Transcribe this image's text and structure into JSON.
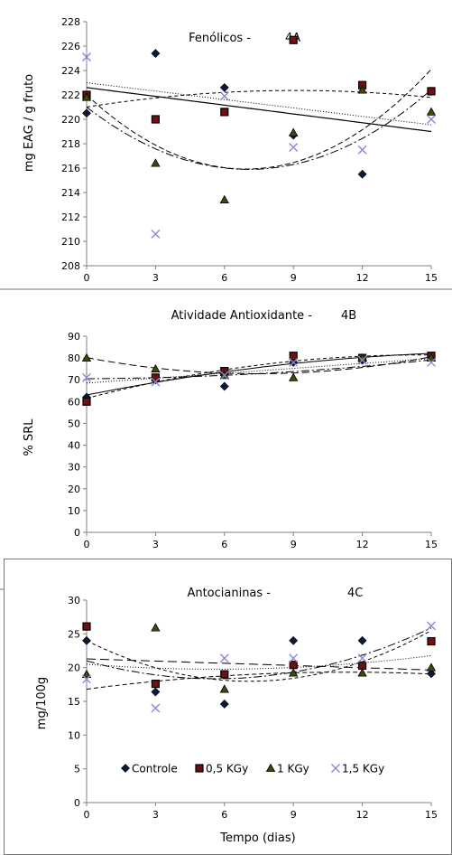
{
  "colors": {
    "controle": "#0a1a3a",
    "kgy05_fill": "#6e1010",
    "kgy1_fill": "#3e4a0a",
    "kgy15": "#8c88d8",
    "axis": "#808080"
  },
  "legend": {
    "items": [
      {
        "label": "Controle",
        "marker": "diamond"
      },
      {
        "label": "0,5 KGy",
        "marker": "square"
      },
      {
        "label": "1 KGy",
        "marker": "triangle"
      },
      {
        "label": "1,5 KGy",
        "marker": "cross"
      }
    ]
  },
  "xlabel": "Tempo (dias)",
  "chart_data": [
    {
      "type": "scatter",
      "title": "Fenólicos -",
      "panel": "4A",
      "ylabel": "mg EAG / g fruto",
      "x": [
        0,
        3,
        6,
        9,
        12,
        15
      ],
      "xticks": [
        0,
        3,
        6,
        9,
        12,
        15
      ],
      "ylim": [
        208,
        228
      ],
      "yticks": [
        208,
        210,
        212,
        214,
        216,
        218,
        220,
        222,
        224,
        226,
        228
      ],
      "series": [
        {
          "name": "Controle",
          "values": [
            220.5,
            225.4,
            222.6,
            218.7,
            215.5,
            222.3
          ]
        },
        {
          "name": "0,5 KGy",
          "values": [
            222.0,
            220.0,
            220.6,
            226.5,
            222.8,
            222.3
          ]
        },
        {
          "name": "1 KGy",
          "values": [
            221.8,
            216.4,
            213.4,
            218.9,
            222.4,
            220.6
          ]
        },
        {
          "name": "1,5 KGy",
          "values": [
            225.1,
            210.6,
            221.9,
            217.7,
            217.5,
            220.0
          ]
        }
      ],
      "trendlines": [
        {
          "series": "Controle",
          "dash": "",
          "width": 1.2,
          "coef": [
            222.6,
            -0.24,
            0
          ]
        },
        {
          "series": "0,5 KGy",
          "dash": "4,3",
          "width": 1,
          "coef": [
            221.0,
            0.3,
            -0.0165
          ]
        },
        {
          "series": "1 KGy",
          "dash": "9,3,2,3",
          "width": 1,
          "coef": [
            221.0,
            -1.45,
            0.103
          ]
        },
        {
          "series": "1,5 KGy",
          "dash": "1,2",
          "width": 1,
          "coef": [
            223.0,
            -0.23,
            0
          ]
        },
        {
          "series": "extra",
          "dash": "6,3",
          "width": 1,
          "coef": [
            222.0,
            -1.75,
            0.126
          ]
        }
      ]
    },
    {
      "type": "scatter",
      "title": "Atividade Antioxidante -",
      "panel": "4B",
      "ylabel": "% SRL",
      "x": [
        0,
        3,
        6,
        9,
        12,
        15
      ],
      "xticks": [
        0,
        3,
        6,
        9,
        12,
        15
      ],
      "ylim": [
        0,
        90
      ],
      "yticks": [
        0,
        10,
        20,
        30,
        40,
        50,
        60,
        70,
        80,
        90
      ],
      "series": [
        {
          "name": "Controle",
          "values": [
            62,
            70,
            67,
            78,
            79,
            80
          ]
        },
        {
          "name": "0,5 KGy",
          "values": [
            60,
            71,
            74,
            81,
            80,
            81
          ]
        },
        {
          "name": "1 KGy",
          "values": [
            80,
            75,
            72,
            71,
            80,
            80
          ]
        },
        {
          "name": "1,5 KGy",
          "values": [
            71,
            69,
            72,
            78,
            79,
            78
          ]
        }
      ],
      "trendlines": [
        {
          "series": "Controle",
          "dash": "",
          "width": 1,
          "coef": [
            63,
            2.1,
            -0.055
          ]
        },
        {
          "series": "0,5 KGy",
          "dash": "4,3",
          "width": 1,
          "coef": [
            61.5,
            2.75,
            -0.095
          ]
        },
        {
          "series": "1 KGy",
          "dash": "8,4",
          "width": 1,
          "coef": [
            80.2,
            -2.0,
            0.135
          ]
        },
        {
          "series": "1,5 KGy",
          "dash": "1,2",
          "width": 1,
          "coef": [
            68.5,
            0.75,
            0
          ]
        },
        {
          "series": "extra",
          "dash": "9,3,2,3",
          "width": 1,
          "coef": [
            70.5,
            0.05,
            0.035
          ]
        }
      ]
    },
    {
      "type": "scatter",
      "title": "Antocianinas -",
      "panel": "4C",
      "ylabel": "mg/100g",
      "x": [
        0,
        3,
        6,
        9,
        12,
        15
      ],
      "xticks": [
        0,
        3,
        6,
        9,
        12,
        15
      ],
      "ylim": [
        0,
        30
      ],
      "yticks": [
        0,
        5,
        10,
        15,
        20,
        25,
        30
      ],
      "series": [
        {
          "name": "Controle",
          "values": [
            24.0,
            16.4,
            14.6,
            24.0,
            24.0,
            19.1
          ]
        },
        {
          "name": "0,5 KGy",
          "values": [
            26.1,
            17.6,
            19.0,
            20.4,
            20.3,
            23.9
          ]
        },
        {
          "name": "1 KGy",
          "values": [
            19.0,
            25.9,
            16.8,
            19.2,
            19.2,
            20.0
          ]
        },
        {
          "name": "1,5 KGy",
          "values": [
            18.3,
            14.0,
            21.4,
            21.4,
            21.4,
            26.2
          ]
        }
      ],
      "trendlines": [
        {
          "series": "Controle",
          "dash": "4,3",
          "width": 1,
          "coef": [
            24.0,
            -1.7,
            0.12
          ]
        },
        {
          "series": "0,5 KGy",
          "dash": "10,5",
          "width": 1,
          "coef": [
            21.3,
            -0.11,
            0
          ]
        },
        {
          "series": "1 KGy",
          "dash": "5,3",
          "width": 1,
          "coef": [
            16.8,
            0.45,
            -0.02
          ]
        },
        {
          "series": "1,5 KGy",
          "dash": "9,3,2,3",
          "width": 1,
          "coef": [
            21.0,
            -0.95,
            0.085
          ]
        },
        {
          "series": "extra",
          "dash": "1,2",
          "width": 1,
          "coef": [
            20.5,
            -0.26,
            0.023
          ]
        }
      ]
    }
  ]
}
